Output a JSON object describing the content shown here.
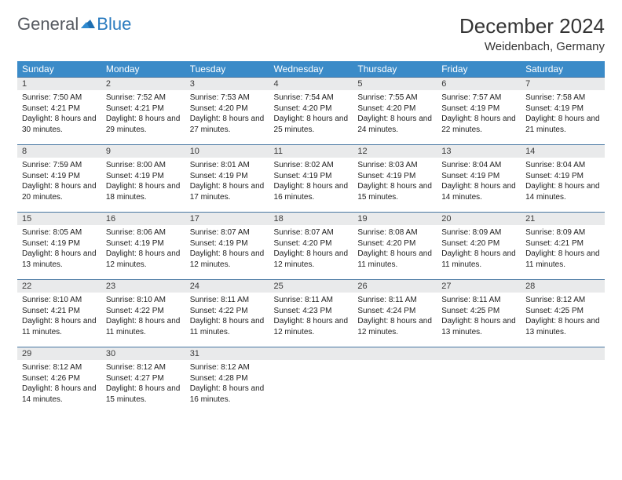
{
  "logo": {
    "word1": "General",
    "word2": "Blue"
  },
  "title": "December 2024",
  "location": "Weidenbach, Germany",
  "header_bg": "#3b8bc8",
  "daynum_bg": "#e9eaeb",
  "rule_color": "#4776a1",
  "columns": [
    "Sunday",
    "Monday",
    "Tuesday",
    "Wednesday",
    "Thursday",
    "Friday",
    "Saturday"
  ],
  "weeks": [
    [
      {
        "n": "1",
        "sr": "7:50 AM",
        "ss": "4:21 PM",
        "dl": "8 hours and 30 minutes."
      },
      {
        "n": "2",
        "sr": "7:52 AM",
        "ss": "4:21 PM",
        "dl": "8 hours and 29 minutes."
      },
      {
        "n": "3",
        "sr": "7:53 AM",
        "ss": "4:20 PM",
        "dl": "8 hours and 27 minutes."
      },
      {
        "n": "4",
        "sr": "7:54 AM",
        "ss": "4:20 PM",
        "dl": "8 hours and 25 minutes."
      },
      {
        "n": "5",
        "sr": "7:55 AM",
        "ss": "4:20 PM",
        "dl": "8 hours and 24 minutes."
      },
      {
        "n": "6",
        "sr": "7:57 AM",
        "ss": "4:19 PM",
        "dl": "8 hours and 22 minutes."
      },
      {
        "n": "7",
        "sr": "7:58 AM",
        "ss": "4:19 PM",
        "dl": "8 hours and 21 minutes."
      }
    ],
    [
      {
        "n": "8",
        "sr": "7:59 AM",
        "ss": "4:19 PM",
        "dl": "8 hours and 20 minutes."
      },
      {
        "n": "9",
        "sr": "8:00 AM",
        "ss": "4:19 PM",
        "dl": "8 hours and 18 minutes."
      },
      {
        "n": "10",
        "sr": "8:01 AM",
        "ss": "4:19 PM",
        "dl": "8 hours and 17 minutes."
      },
      {
        "n": "11",
        "sr": "8:02 AM",
        "ss": "4:19 PM",
        "dl": "8 hours and 16 minutes."
      },
      {
        "n": "12",
        "sr": "8:03 AM",
        "ss": "4:19 PM",
        "dl": "8 hours and 15 minutes."
      },
      {
        "n": "13",
        "sr": "8:04 AM",
        "ss": "4:19 PM",
        "dl": "8 hours and 14 minutes."
      },
      {
        "n": "14",
        "sr": "8:04 AM",
        "ss": "4:19 PM",
        "dl": "8 hours and 14 minutes."
      }
    ],
    [
      {
        "n": "15",
        "sr": "8:05 AM",
        "ss": "4:19 PM",
        "dl": "8 hours and 13 minutes."
      },
      {
        "n": "16",
        "sr": "8:06 AM",
        "ss": "4:19 PM",
        "dl": "8 hours and 12 minutes."
      },
      {
        "n": "17",
        "sr": "8:07 AM",
        "ss": "4:19 PM",
        "dl": "8 hours and 12 minutes."
      },
      {
        "n": "18",
        "sr": "8:07 AM",
        "ss": "4:20 PM",
        "dl": "8 hours and 12 minutes."
      },
      {
        "n": "19",
        "sr": "8:08 AM",
        "ss": "4:20 PM",
        "dl": "8 hours and 11 minutes."
      },
      {
        "n": "20",
        "sr": "8:09 AM",
        "ss": "4:20 PM",
        "dl": "8 hours and 11 minutes."
      },
      {
        "n": "21",
        "sr": "8:09 AM",
        "ss": "4:21 PM",
        "dl": "8 hours and 11 minutes."
      }
    ],
    [
      {
        "n": "22",
        "sr": "8:10 AM",
        "ss": "4:21 PM",
        "dl": "8 hours and 11 minutes."
      },
      {
        "n": "23",
        "sr": "8:10 AM",
        "ss": "4:22 PM",
        "dl": "8 hours and 11 minutes."
      },
      {
        "n": "24",
        "sr": "8:11 AM",
        "ss": "4:22 PM",
        "dl": "8 hours and 11 minutes."
      },
      {
        "n": "25",
        "sr": "8:11 AM",
        "ss": "4:23 PM",
        "dl": "8 hours and 12 minutes."
      },
      {
        "n": "26",
        "sr": "8:11 AM",
        "ss": "4:24 PM",
        "dl": "8 hours and 12 minutes."
      },
      {
        "n": "27",
        "sr": "8:11 AM",
        "ss": "4:25 PM",
        "dl": "8 hours and 13 minutes."
      },
      {
        "n": "28",
        "sr": "8:12 AM",
        "ss": "4:25 PM",
        "dl": "8 hours and 13 minutes."
      }
    ],
    [
      {
        "n": "29",
        "sr": "8:12 AM",
        "ss": "4:26 PM",
        "dl": "8 hours and 14 minutes."
      },
      {
        "n": "30",
        "sr": "8:12 AM",
        "ss": "4:27 PM",
        "dl": "8 hours and 15 minutes."
      },
      {
        "n": "31",
        "sr": "8:12 AM",
        "ss": "4:28 PM",
        "dl": "8 hours and 16 minutes."
      },
      {
        "empty": true
      },
      {
        "empty": true
      },
      {
        "empty": true
      },
      {
        "empty": true
      }
    ]
  ],
  "labels": {
    "sunrise": "Sunrise: ",
    "sunset": "Sunset: ",
    "daylight": "Daylight: "
  }
}
